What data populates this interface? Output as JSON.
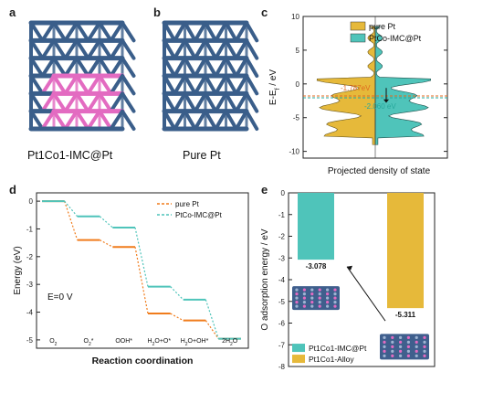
{
  "panels": {
    "a": {
      "label": "a",
      "caption": "Pt1Co1-IMC@Pt"
    },
    "b": {
      "label": "b",
      "caption": "Pure Pt"
    },
    "c": {
      "label": "c"
    },
    "d": {
      "label": "d"
    },
    "e": {
      "label": "e"
    }
  },
  "colors": {
    "pt_blue": "#3a5e8a",
    "co_pink": "#e36bc1",
    "pure_pt": "#e6b93a",
    "ptco": "#4fc4ba",
    "orange": "#f07c1c"
  },
  "chart_data": [
    {
      "id": "c",
      "type": "area",
      "xlabel": "Projected density of state",
      "ylabel": "E-E_f / eV",
      "ylim": [
        -11,
        10
      ],
      "yticks": [
        10,
        5,
        0,
        -5,
        -10
      ],
      "ticks_right": true,
      "series": [
        {
          "name": "pure Pt",
          "color": "#e6b93a",
          "side": "left"
        },
        {
          "name": "PtCo-IMC@Pt",
          "color": "#4fc4ba",
          "side": "right"
        }
      ],
      "annotations": [
        {
          "text": "-1.787eV",
          "value": -1.787,
          "color": "#e06a20"
        },
        {
          "text": "-2.060 eV",
          "value": -2.06,
          "color": "#27a89c"
        }
      ],
      "legend": "top-right"
    },
    {
      "id": "d",
      "type": "line",
      "xlabel": "Reaction coordination",
      "ylabel": "Energy (eV)",
      "ylim": [
        -5.3,
        0.3
      ],
      "yticks": [
        0,
        -1,
        -2,
        -3,
        -4,
        -5
      ],
      "categories": [
        "O2",
        "O2*",
        "OOH*",
        "H2O+O*",
        "H2O+OH*",
        "2H2O"
      ],
      "category_labels": [
        {
          "main": "O",
          "sub": "2"
        },
        {
          "main": "O",
          "sub": "2",
          "tail": "*"
        },
        {
          "main": "OOH*"
        },
        {
          "main": "H",
          "sub": "2",
          "tail": "O+O*"
        },
        {
          "main": "H",
          "sub": "2",
          "tail": "O+OH*"
        },
        {
          "main": "2H",
          "sub": "2",
          "tail": "O"
        }
      ],
      "series": [
        {
          "name": "pure Pt",
          "color": "#f07c1c",
          "values": [
            0,
            -1.4,
            -1.65,
            -4.05,
            -4.3,
            -4.96
          ]
        },
        {
          "name": "PtCo-IMC@Pt",
          "color": "#4fc4ba",
          "values": [
            0,
            -0.55,
            -0.95,
            -3.08,
            -3.55,
            -4.96
          ]
        }
      ],
      "annotation": "E=0 V",
      "legend": "top-right"
    },
    {
      "id": "e",
      "type": "bar",
      "ylabel": "O adsorption energy / eV",
      "ylim": [
        -8,
        0
      ],
      "yticks": [
        0,
        -1,
        -2,
        -3,
        -4,
        -5,
        -6,
        -7,
        -8
      ],
      "series": [
        {
          "name": "Pt1Co1-IMC@Pt",
          "color": "#4fc4ba",
          "value": -3.078,
          "label": "-3.078"
        },
        {
          "name": "Pt1Co1-Alloy",
          "color": "#e6b93a",
          "value": -5.311,
          "label": "-5.311"
        }
      ],
      "legend": "bottom-left"
    }
  ]
}
